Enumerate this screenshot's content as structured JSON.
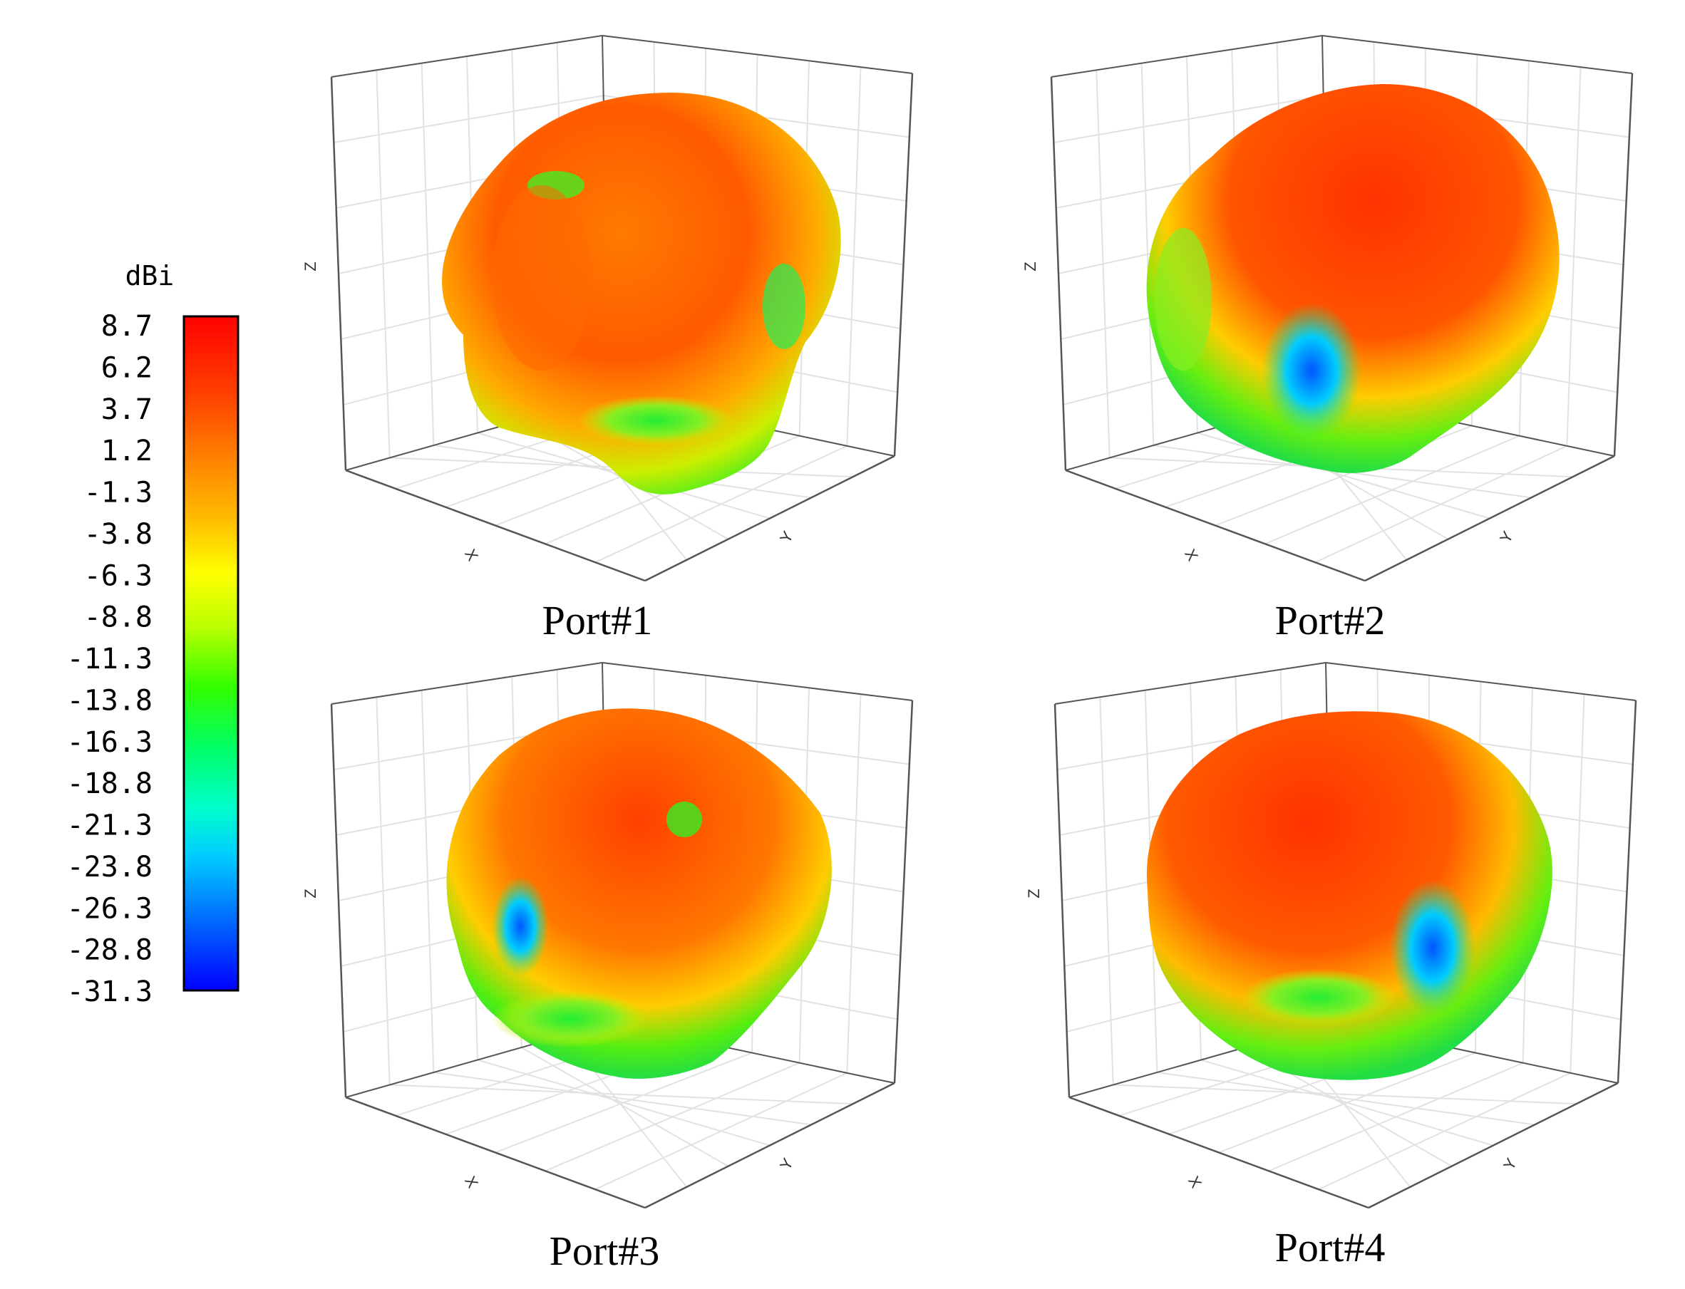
{
  "chart_data": {
    "type": "3d-radiation-pattern",
    "colorbar": {
      "title": "dBi",
      "ticks": [
        "8.7",
        "6.2",
        "3.7",
        "1.2",
        "-1.3",
        "-3.8",
        "-6.3",
        "-8.8",
        "-11.3",
        "-13.8",
        "-16.3",
        "-18.8",
        "-21.3",
        "-23.8",
        "-26.3",
        "-28.8",
        "-31.3"
      ],
      "range": [
        -31.3,
        8.7
      ],
      "colormap": [
        "#0000ff",
        "#0066ff",
        "#00ccff",
        "#00ff66",
        "#33ff00",
        "#ccff00",
        "#ffff00",
        "#ffaa00",
        "#ff6600",
        "#ff0000"
      ]
    },
    "panels": [
      {
        "caption": "Port#1",
        "axes": {
          "x": "X",
          "y": "Y",
          "z": "Z"
        }
      },
      {
        "caption": "Port#2",
        "axes": {
          "x": "X",
          "y": "Y",
          "z": "Z"
        }
      },
      {
        "caption": "Port#3",
        "axes": {
          "x": "X",
          "y": "Y",
          "z": "Z"
        }
      },
      {
        "caption": "Port#4",
        "axes": {
          "x": "X",
          "y": "Y",
          "z": "Z"
        }
      }
    ]
  }
}
